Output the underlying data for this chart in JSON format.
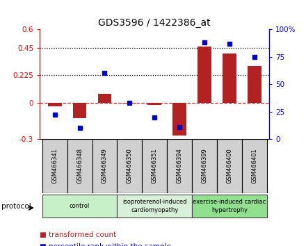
{
  "title": "GDS3596 / 1422386_at",
  "samples": [
    "GSM466341",
    "GSM466348",
    "GSM466349",
    "GSM466350",
    "GSM466351",
    "GSM466394",
    "GSM466399",
    "GSM466400",
    "GSM466401"
  ],
  "transformed_count": [
    -0.03,
    -0.13,
    0.07,
    -0.01,
    -0.02,
    -0.27,
    0.46,
    0.4,
    0.3
  ],
  "percentile_rank": [
    22,
    10,
    60,
    33,
    20,
    11,
    88,
    87,
    75
  ],
  "groups": [
    {
      "label": "control",
      "indices": [
        0,
        1,
        2
      ],
      "color": "#c8f0c8"
    },
    {
      "label": "isoproterenol-induced\ncardiomyopathy",
      "indices": [
        3,
        4,
        5
      ],
      "color": "#d8f0d8"
    },
    {
      "label": "exercise-induced cardiac\nhypertrophy",
      "indices": [
        6,
        7,
        8
      ],
      "color": "#90e090"
    }
  ],
  "ylim_left": [
    -0.3,
    0.6
  ],
  "ylim_right": [
    0,
    100
  ],
  "yticks_left": [
    -0.3,
    0.0,
    0.225,
    0.45,
    0.6
  ],
  "ytick_labels_left": [
    "-0.3",
    "0",
    "0.225",
    "0.45",
    "0.6"
  ],
  "yticks_right": [
    0,
    25,
    50,
    75,
    100
  ],
  "ytick_labels_right": [
    "0",
    "25",
    "50",
    "75",
    "100%"
  ],
  "hlines_dotted": [
    0.225,
    0.45
  ],
  "bar_color": "#b22222",
  "dot_color": "#0000cc",
  "bar_width": 0.55,
  "bg_color": "#ffffff",
  "plot_bg": "#ffffff",
  "label_bg": "#d0d0d0",
  "group_colors": [
    "#c8f0c8",
    "#d8f0d8",
    "#90e090"
  ]
}
